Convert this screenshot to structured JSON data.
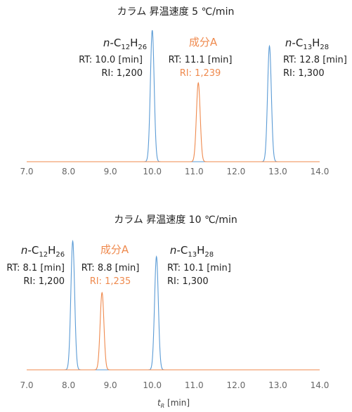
{
  "chart_data": [
    {
      "type": "line",
      "title": "カラム 昇温速度 5 ℃/min",
      "xlim": [
        7.0,
        14.0
      ],
      "x_ticks": [
        "7.0",
        "8.0",
        "9.0",
        "10.0",
        "11.0",
        "12.0",
        "13.0",
        "14.0"
      ],
      "series": [
        {
          "color": "#5b9bd5",
          "peaks": [
            {
              "rt": 10.0,
              "height": 1.0
            },
            {
              "rt": 12.8,
              "height": 0.88
            }
          ]
        },
        {
          "color": "#ef8a4e",
          "peaks": [
            {
              "rt": 11.1,
              "height": 0.6
            }
          ]
        }
      ],
      "peak_labels": [
        {
          "name_prefix": "n-",
          "name_main": "C",
          "name_sub1": "12",
          "name_mid": "H",
          "name_sub2": "26",
          "rt": "RT: 10.0 [min]",
          "ri": "RI: 1,200",
          "accent": false
        },
        {
          "name_full": "成分A",
          "rt": "RT: 11.1 [min]",
          "ri": "RI: 1,239",
          "accent": true
        },
        {
          "name_prefix": "n-",
          "name_main": "C",
          "name_sub1": "13",
          "name_mid": "H",
          "name_sub2": "28",
          "rt": "RT: 12.8 [min]",
          "ri": "RI: 1,300",
          "accent": false
        }
      ]
    },
    {
      "type": "line",
      "title": "カラム 昇温速度 10 ℃/min",
      "xlim": [
        7.0,
        14.0
      ],
      "x_ticks": [
        "7.0",
        "8.0",
        "9.0",
        "10.0",
        "11.0",
        "12.0",
        "13.0",
        "14.0"
      ],
      "xlabel_main": "t",
      "xlabel_sub": "R",
      "xlabel_unit": " [min]",
      "series": [
        {
          "color": "#5b9bd5",
          "peaks": [
            {
              "rt": 8.1,
              "height": 1.0
            },
            {
              "rt": 10.1,
              "height": 0.88
            }
          ]
        },
        {
          "color": "#ef8a4e",
          "peaks": [
            {
              "rt": 8.8,
              "height": 0.6
            }
          ]
        }
      ],
      "peak_labels": [
        {
          "name_prefix": "n-",
          "name_main": "C",
          "name_sub1": "12",
          "name_mid": "H",
          "name_sub2": "26",
          "rt": "RT: 8.1 [min]",
          "ri": "RI: 1,200",
          "accent": false
        },
        {
          "name_full": "成分A",
          "rt": "RT: 8.8 [min]",
          "ri": "RI: 1,235",
          "accent": true
        },
        {
          "name_prefix": "n-",
          "name_main": "C",
          "name_sub1": "13",
          "name_mid": "H",
          "name_sub2": "28",
          "rt": "RT: 10.1 [min]",
          "ri": "RI: 1,300",
          "accent": false
        }
      ]
    }
  ]
}
